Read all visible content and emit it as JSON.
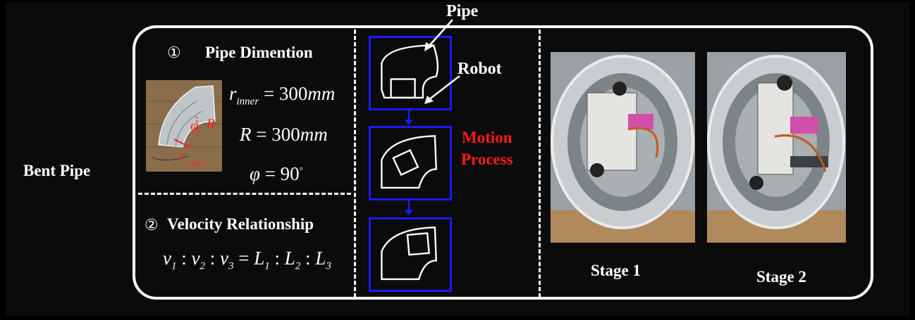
{
  "row_label": "Bent Pipe",
  "section1": {
    "number": "①",
    "title": "Pipe Dimention",
    "photo_labels": {
      "phi": "φ",
      "R": "R",
      "r": "r",
      "r_sub": "inner"
    },
    "formulas": {
      "r_inner": {
        "var": "r",
        "sub": "inner",
        "value": " = 300",
        "unit": "mm"
      },
      "R": {
        "var": "R",
        "value": " = 300",
        "unit": "mm"
      },
      "phi": {
        "var": "φ",
        "value": " = 90",
        "sup": "°"
      }
    }
  },
  "section2": {
    "number": "②",
    "title": "Velocity Relationship",
    "formula": {
      "v1": "v",
      "s1": "1",
      "v2": "v",
      "s2": "2",
      "v3": "v",
      "s3": "3",
      "L1": "L",
      "t1": "1",
      "L2": "L",
      "t2": "2",
      "L3": "L",
      "t3": "3"
    }
  },
  "callouts": {
    "pipe": "Pipe",
    "robot": "Robot"
  },
  "motion_process": {
    "line1": "Motion",
    "line2": "Process"
  },
  "stages": [
    "Stage 1",
    "Stage 2"
  ],
  "colors": {
    "accent_blue": "#1a1aff",
    "accent_red": "#ff1a1a",
    "background": "#0b0b0b",
    "line": "#ffffff"
  }
}
